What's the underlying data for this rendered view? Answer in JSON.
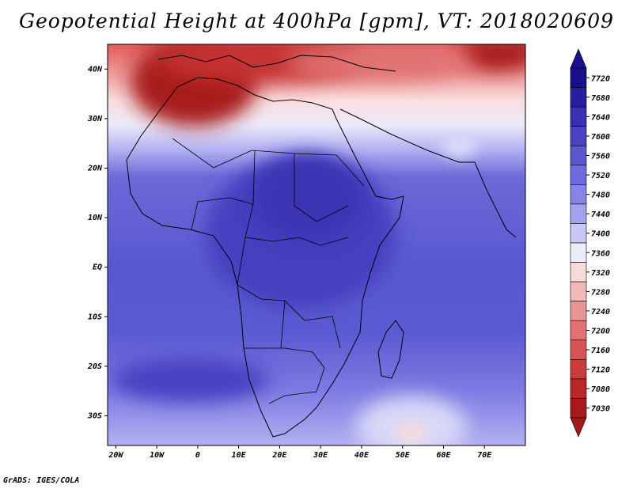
{
  "title": "Geopotential Height at 400hPa [gpm], VT: 2018020609",
  "credit": "GrADS: IGES/COLA",
  "map": {
    "lon_range": [
      -22,
      80
    ],
    "lat_range": [
      -36,
      45
    ],
    "lat_ticks": [
      {
        "value": 40,
        "label": "40N"
      },
      {
        "value": 30,
        "label": "30N"
      },
      {
        "value": 20,
        "label": "20N"
      },
      {
        "value": 10,
        "label": "10N"
      },
      {
        "value": 0,
        "label": "EQ"
      },
      {
        "value": -10,
        "label": "10S"
      },
      {
        "value": -20,
        "label": "20S"
      },
      {
        "value": -30,
        "label": "30S"
      }
    ],
    "lon_ticks": [
      {
        "value": -20,
        "label": "20W"
      },
      {
        "value": -10,
        "label": "10W"
      },
      {
        "value": 0,
        "label": "0"
      },
      {
        "value": 10,
        "label": "10E"
      },
      {
        "value": 20,
        "label": "20E"
      },
      {
        "value": 30,
        "label": "30E"
      },
      {
        "value": 40,
        "label": "40E"
      },
      {
        "value": 50,
        "label": "50E"
      },
      {
        "value": 60,
        "label": "60E"
      },
      {
        "value": 70,
        "label": "70E"
      }
    ]
  },
  "colorbar": [
    {
      "label": "7720",
      "color": "#1a0f8c"
    },
    {
      "label": "7680",
      "color": "#2a1ea0"
    },
    {
      "label": "7640",
      "color": "#3a30b4"
    },
    {
      "label": "7600",
      "color": "#4a44c4"
    },
    {
      "label": "7560",
      "color": "#5a58d0"
    },
    {
      "label": "7520",
      "color": "#6e6cdc"
    },
    {
      "label": "7480",
      "color": "#8684e6"
    },
    {
      "label": "7440",
      "color": "#a4a2ee"
    },
    {
      "label": "7400",
      "color": "#c8c8f6"
    },
    {
      "label": "7360",
      "color": "#ecebfa"
    },
    {
      "label": "7320",
      "color": "#f8dada"
    },
    {
      "label": "7280",
      "color": "#f2b8b8"
    },
    {
      "label": "7240",
      "color": "#ea9494"
    },
    {
      "label": "7200",
      "color": "#e27272"
    },
    {
      "label": "7160",
      "color": "#d85454"
    },
    {
      "label": "7120",
      "color": "#cc3a3a"
    },
    {
      "label": "7080",
      "color": "#ba2626"
    },
    {
      "label": "7030",
      "color": "#a81a1a"
    }
  ],
  "colorbar_top_color": "#1a0f8c",
  "colorbar_bottom_color": "#a01818"
}
